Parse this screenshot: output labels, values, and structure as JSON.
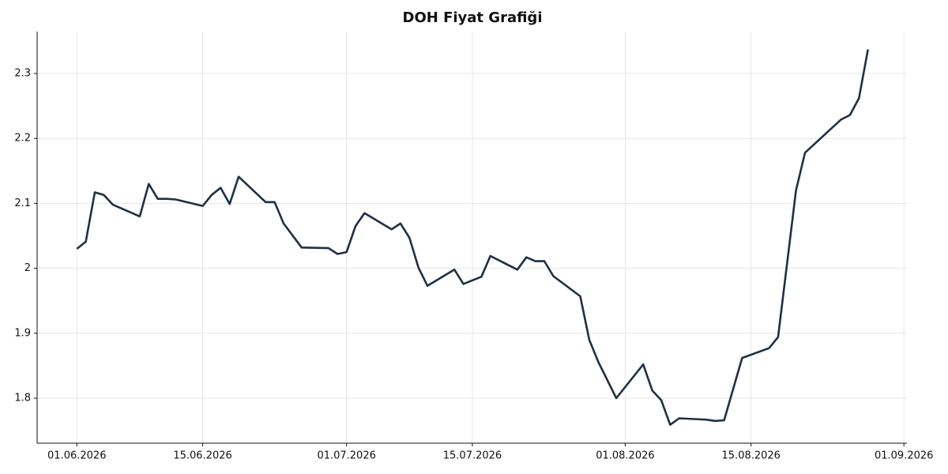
{
  "chart_data": {
    "type": "line",
    "title": "DOH Fiyat Grafiği",
    "x": [
      "2026-06-01",
      "2026-06-02",
      "2026-06-03",
      "2026-06-04",
      "2026-06-05",
      "2026-06-08",
      "2026-06-09",
      "2026-06-10",
      "2026-06-11",
      "2026-06-12",
      "2026-06-15",
      "2026-06-16",
      "2026-06-17",
      "2026-06-18",
      "2026-06-19",
      "2026-06-22",
      "2026-06-23",
      "2026-06-24",
      "2026-06-26",
      "2026-06-29",
      "2026-06-30",
      "2026-07-01",
      "2026-07-02",
      "2026-07-03",
      "2026-07-06",
      "2026-07-07",
      "2026-07-08",
      "2026-07-09",
      "2026-07-10",
      "2026-07-13",
      "2026-07-14",
      "2026-07-16",
      "2026-07-17",
      "2026-07-20",
      "2026-07-21",
      "2026-07-22",
      "2026-07-23",
      "2026-07-24",
      "2026-07-27",
      "2026-07-28",
      "2026-07-29",
      "2026-07-31",
      "2026-08-03",
      "2026-08-04",
      "2026-08-05",
      "2026-08-06",
      "2026-08-07",
      "2026-08-10",
      "2026-08-11",
      "2026-08-12",
      "2026-08-14",
      "2026-08-17",
      "2026-08-18",
      "2026-08-20",
      "2026-08-21",
      "2026-08-25",
      "2026-08-26",
      "2026-08-27",
      "2026-08-28"
    ],
    "series": [
      {
        "name": "DOH",
        "color": "#1f3044",
        "values": [
          2.03,
          2.041,
          2.117,
          2.113,
          2.098,
          2.08,
          2.13,
          2.107,
          2.107,
          2.106,
          2.096,
          2.113,
          2.124,
          2.099,
          2.141,
          2.102,
          2.102,
          2.069,
          2.032,
          2.031,
          2.022,
          2.025,
          2.065,
          2.085,
          2.06,
          2.069,
          2.047,
          2.001,
          1.973,
          1.998,
          1.976,
          1.987,
          2.019,
          1.998,
          2.017,
          2.011,
          2.011,
          1.988,
          1.957,
          1.89,
          1.856,
          1.8,
          1.852,
          1.812,
          1.797,
          1.759,
          1.769,
          1.767,
          1.765,
          1.766,
          1.862,
          1.877,
          1.894,
          2.12,
          2.178,
          2.229,
          2.236,
          2.262,
          2.337
        ]
      }
    ],
    "xlim": [
      "2026-05-27T14:00Z",
      "2026-09-01T08:00Z"
    ],
    "xticks": [
      {
        "value": "2026-06-01",
        "label": "01.06.2026"
      },
      {
        "value": "2026-06-15",
        "label": "15.06.2026"
      },
      {
        "value": "2026-07-01",
        "label": "01.07.2026"
      },
      {
        "value": "2026-07-15",
        "label": "15.07.2026"
      },
      {
        "value": "2026-08-01",
        "label": "01.08.2026"
      },
      {
        "value": "2026-08-15",
        "label": "15.08.2026"
      },
      {
        "value": "2026-09-01",
        "label": "01.09.2026"
      }
    ],
    "ylim": [
      1.7307,
      2.3645
    ],
    "yticks": [
      1.8,
      1.9,
      2.0,
      2.1,
      2.2,
      2.3
    ],
    "grid": true
  }
}
